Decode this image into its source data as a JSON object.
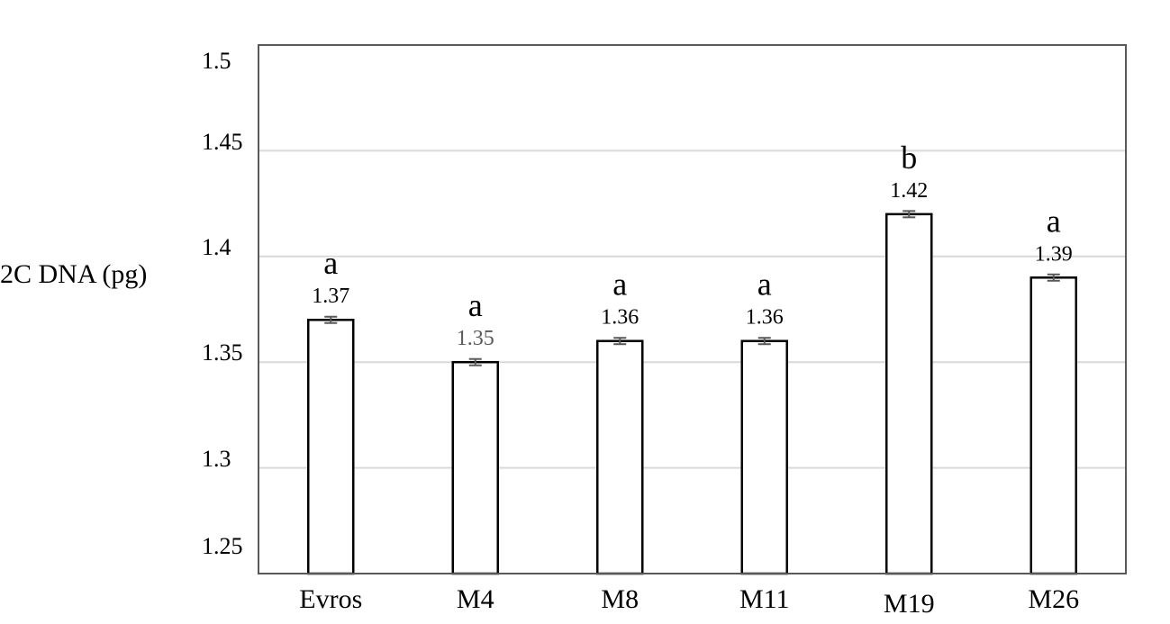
{
  "chart_data": {
    "type": "bar",
    "title": "",
    "xlabel": "",
    "ylabel": "2C DNA (pg)",
    "ylim": [
      1.25,
      1.5
    ],
    "yticks": [
      "1.25",
      "1.3",
      "1.35",
      "1.4",
      "1.45",
      "1.5"
    ],
    "grid": true,
    "categories": [
      "Evros",
      "M4",
      "M8",
      "M11",
      "M19",
      "M26"
    ],
    "values": [
      1.37,
      1.35,
      1.36,
      1.36,
      1.42,
      1.39
    ],
    "value_labels": [
      "1.37",
      "1.35",
      "1.36",
      "1.36",
      "1.42",
      "1.39"
    ],
    "error": [
      0.001,
      0.001,
      0.001,
      0.001,
      0.001,
      0.001
    ],
    "significance_letters": [
      "a",
      "a",
      "a",
      "a",
      "b",
      "a"
    ]
  },
  "colors": {
    "bar_fill": "#ffffff",
    "bar_stroke": "#000000",
    "grid": "#d9d9d9",
    "frame": "#595959",
    "error_bar": "#595959",
    "value_label_M4": "#595959"
  }
}
